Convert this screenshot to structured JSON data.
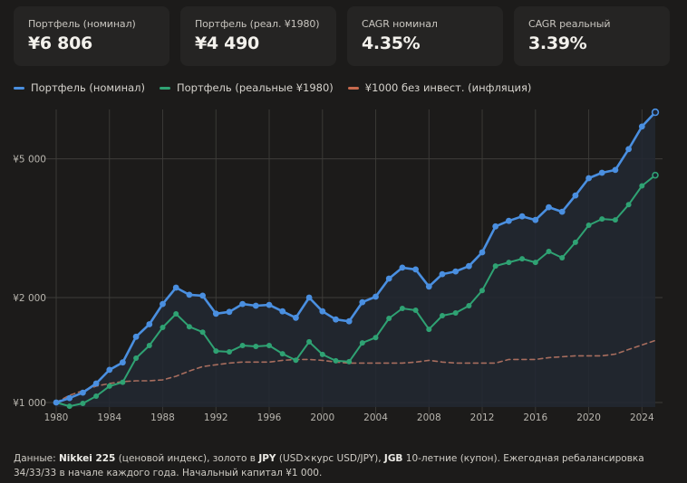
{
  "stats": [
    {
      "label": "Портфель (номинал)",
      "value": "¥6 806"
    },
    {
      "label": "Портфель (реал. ¥1980)",
      "value": "¥4 490"
    },
    {
      "label": "CAGR номинал",
      "value": "4.35%"
    },
    {
      "label": "CAGR реальный",
      "value": "3.39%"
    }
  ],
  "legend": [
    {
      "label": "Портфель (номинал)",
      "color": "#4a8fe0"
    },
    {
      "label": "Портфель (реальные ¥1980)",
      "color": "#2fa273"
    },
    {
      "label": "¥1000 без инвест. (инфляция)",
      "color": "#c86a4e"
    }
  ],
  "footer": {
    "prefix": "Данные: ",
    "b1": "Nikkei 225",
    "t1": " (ценовой индекс), золото в ",
    "b2": "JPY",
    "t2": " (USD×курс USD/JPY), ",
    "b3": "JGB",
    "t3": " 10-летние (купон). Ежегодная ребалансировка 34/33/33 в начале каждого года. Начальный капитал ¥1 000."
  },
  "chart_data": {
    "type": "line",
    "title": "",
    "xlabel": "",
    "ylabel": "",
    "y_scale": "log",
    "ylim": [
      930,
      7000
    ],
    "xlim": [
      1980,
      2025
    ],
    "grid": true,
    "legend_position": "top-left",
    "x_ticks": [
      1980,
      1984,
      1988,
      1992,
      1996,
      2000,
      2004,
      2008,
      2012,
      2016,
      2020,
      2024
    ],
    "y_ticks": [
      {
        "value": 1000,
        "label": "¥1 000"
      },
      {
        "value": 2000,
        "label": "¥2 000"
      },
      {
        "value": 5000,
        "label": "¥5 000"
      }
    ],
    "x": [
      1980,
      1981,
      1982,
      1983,
      1984,
      1985,
      1986,
      1987,
      1988,
      1989,
      1990,
      1991,
      1992,
      1993,
      1994,
      1995,
      1996,
      1997,
      1998,
      1999,
      2000,
      2001,
      2002,
      2003,
      2004,
      2005,
      2006,
      2007,
      2008,
      2009,
      2010,
      2011,
      2012,
      2013,
      2014,
      2015,
      2016,
      2017,
      2018,
      2019,
      2020,
      2021,
      2022,
      2023,
      2024,
      2025
    ],
    "series": [
      {
        "name": "Портфель (номинал)",
        "color": "#4a8fe0",
        "style": "solid-markers",
        "values": [
          1000,
          1030,
          1067,
          1134,
          1241,
          1303,
          1544,
          1677,
          1917,
          2136,
          2037,
          2025,
          1798,
          1820,
          1917,
          1895,
          1906,
          1826,
          1750,
          2000,
          1826,
          1731,
          1710,
          1940,
          2012,
          2267,
          2437,
          2408,
          2151,
          2335,
          2377,
          2462,
          2696,
          3201,
          3319,
          3421,
          3339,
          3634,
          3526,
          3927,
          4400,
          4562,
          4646,
          5331,
          6191,
          6806
        ]
      },
      {
        "name": "Портфель (реальные ¥1980)",
        "color": "#2fa273",
        "style": "solid-markers",
        "values": [
          1000,
          976,
          994,
          1043,
          1114,
          1143,
          1340,
          1457,
          1642,
          1796,
          1650,
          1592,
          1405,
          1397,
          1457,
          1448,
          1457,
          1380,
          1322,
          1493,
          1373,
          1317,
          1309,
          1483,
          1536,
          1743,
          1862,
          1839,
          1622,
          1775,
          1807,
          1895,
          2095,
          2464,
          2523,
          2584,
          2523,
          2712,
          2601,
          2881,
          3225,
          3362,
          3341,
          3695,
          4184,
          4490
        ]
      },
      {
        "name": "¥1000 без инвест. (инфляция)",
        "color": "#c86a4e",
        "style": "dashed",
        "values": [
          1000,
          1049,
          1081,
          1114,
          1134,
          1148,
          1154,
          1154,
          1161,
          1189,
          1231,
          1268,
          1283,
          1298,
          1306,
          1306,
          1306,
          1321,
          1329,
          1329,
          1321,
          1306,
          1298,
          1298,
          1298,
          1298,
          1298,
          1306,
          1321,
          1306,
          1298,
          1298,
          1298,
          1298,
          1329,
          1329,
          1329,
          1345,
          1353,
          1361,
          1361,
          1361,
          1377,
          1419,
          1462,
          1507
        ]
      }
    ]
  }
}
